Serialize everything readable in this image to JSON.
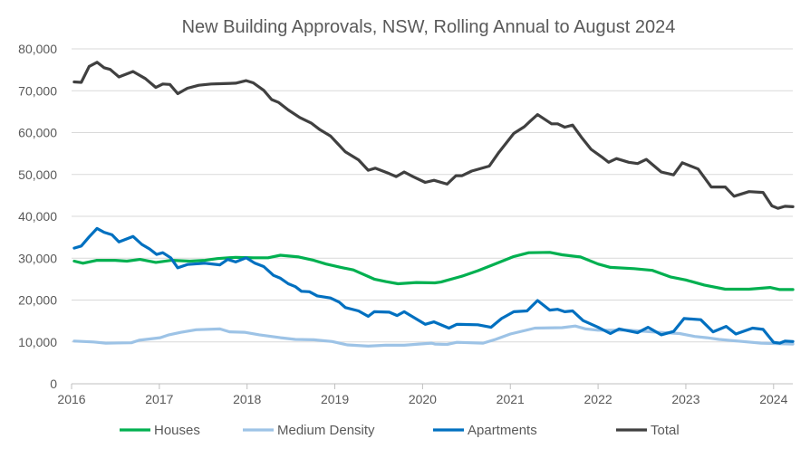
{
  "chart_data": {
    "type": "line",
    "title": "New Building Approvals, NSW, Rolling Annual to August 2024",
    "xlabel": "",
    "ylabel": "",
    "xlim": [
      2016,
      2024.22
    ],
    "ylim": [
      0,
      80000
    ],
    "x_ticks": [
      "2016",
      "2017",
      "2018",
      "2019",
      "2020",
      "2021",
      "2022",
      "2023",
      "2024"
    ],
    "y_ticks": [
      "0",
      "10,000",
      "20,000",
      "30,000",
      "40,000",
      "50,000",
      "60,000",
      "70,000",
      "80,000"
    ],
    "grid": "horizontal",
    "legend_position": "bottom",
    "series": [
      {
        "name": "Houses",
        "color": "#00B050",
        "points": [
          [
            2016.03,
            29300
          ],
          [
            2016.13,
            28800
          ],
          [
            2016.29,
            29500
          ],
          [
            2016.49,
            29500
          ],
          [
            2016.63,
            29300
          ],
          [
            2016.78,
            29700
          ],
          [
            2016.96,
            29000
          ],
          [
            2017.14,
            29500
          ],
          [
            2017.35,
            29300
          ],
          [
            2017.52,
            29500
          ],
          [
            2017.66,
            29900
          ],
          [
            2017.87,
            30200
          ],
          [
            2018.07,
            30100
          ],
          [
            2018.24,
            30100
          ],
          [
            2018.38,
            30700
          ],
          [
            2018.59,
            30300
          ],
          [
            2018.76,
            29500
          ],
          [
            2018.9,
            28600
          ],
          [
            2019.07,
            27800
          ],
          [
            2019.21,
            27200
          ],
          [
            2019.45,
            25000
          ],
          [
            2019.58,
            24400
          ],
          [
            2019.72,
            23900
          ],
          [
            2019.93,
            24200
          ],
          [
            2020.14,
            24100
          ],
          [
            2020.21,
            24300
          ],
          [
            2020.45,
            25700
          ],
          [
            2020.63,
            27000
          ],
          [
            2020.8,
            28400
          ],
          [
            2021.04,
            30400
          ],
          [
            2021.21,
            31300
          ],
          [
            2021.45,
            31400
          ],
          [
            2021.59,
            30800
          ],
          [
            2021.8,
            30300
          ],
          [
            2022.0,
            28600
          ],
          [
            2022.14,
            27800
          ],
          [
            2022.41,
            27500
          ],
          [
            2022.62,
            27100
          ],
          [
            2022.83,
            25500
          ],
          [
            2023.0,
            24800
          ],
          [
            2023.21,
            23600
          ],
          [
            2023.45,
            22600
          ],
          [
            2023.72,
            22600
          ],
          [
            2023.96,
            23000
          ],
          [
            2024.07,
            22500
          ],
          [
            2024.22,
            22500
          ]
        ]
      },
      {
        "name": "Medium Density",
        "color": "#9DC3E6",
        "points": [
          [
            2016.03,
            10200
          ],
          [
            2016.25,
            10000
          ],
          [
            2016.39,
            9700
          ],
          [
            2016.68,
            9800
          ],
          [
            2016.77,
            10400
          ],
          [
            2017.01,
            11000
          ],
          [
            2017.11,
            11700
          ],
          [
            2017.25,
            12300
          ],
          [
            2017.42,
            12900
          ],
          [
            2017.69,
            13100
          ],
          [
            2017.8,
            12400
          ],
          [
            2017.97,
            12300
          ],
          [
            2018.14,
            11700
          ],
          [
            2018.38,
            11000
          ],
          [
            2018.55,
            10600
          ],
          [
            2018.76,
            10500
          ],
          [
            2018.97,
            10100
          ],
          [
            2019.14,
            9300
          ],
          [
            2019.38,
            9000
          ],
          [
            2019.58,
            9200
          ],
          [
            2019.79,
            9200
          ],
          [
            2020.1,
            9700
          ],
          [
            2020.14,
            9500
          ],
          [
            2020.28,
            9400
          ],
          [
            2020.39,
            9900
          ],
          [
            2020.69,
            9700
          ],
          [
            2020.83,
            10600
          ],
          [
            2021.0,
            11900
          ],
          [
            2021.28,
            13300
          ],
          [
            2021.59,
            13400
          ],
          [
            2021.74,
            13800
          ],
          [
            2021.86,
            13100
          ],
          [
            2022.0,
            12800
          ],
          [
            2022.35,
            12800
          ],
          [
            2022.69,
            12300
          ],
          [
            2022.93,
            12000
          ],
          [
            2023.1,
            11300
          ],
          [
            2023.24,
            11000
          ],
          [
            2023.38,
            10600
          ],
          [
            2023.65,
            10100
          ],
          [
            2023.86,
            9700
          ],
          [
            2024.22,
            9500
          ]
        ]
      },
      {
        "name": "Apartments",
        "color": "#0070C0",
        "points": [
          [
            2016.03,
            32400
          ],
          [
            2016.11,
            32900
          ],
          [
            2016.2,
            35100
          ],
          [
            2016.29,
            37100
          ],
          [
            2016.37,
            36200
          ],
          [
            2016.46,
            35600
          ],
          [
            2016.54,
            33900
          ],
          [
            2016.7,
            35200
          ],
          [
            2016.8,
            33300
          ],
          [
            2016.89,
            32200
          ],
          [
            2016.97,
            30900
          ],
          [
            2017.04,
            31300
          ],
          [
            2017.13,
            30100
          ],
          [
            2017.21,
            27700
          ],
          [
            2017.32,
            28500
          ],
          [
            2017.52,
            28800
          ],
          [
            2017.69,
            28400
          ],
          [
            2017.78,
            29700
          ],
          [
            2017.87,
            29100
          ],
          [
            2017.99,
            30100
          ],
          [
            2018.09,
            28800
          ],
          [
            2018.19,
            28000
          ],
          [
            2018.3,
            25900
          ],
          [
            2018.38,
            25200
          ],
          [
            2018.47,
            23900
          ],
          [
            2018.55,
            23200
          ],
          [
            2018.62,
            22100
          ],
          [
            2018.71,
            22000
          ],
          [
            2018.8,
            21000
          ],
          [
            2018.95,
            20500
          ],
          [
            2019.05,
            19500
          ],
          [
            2019.12,
            18200
          ],
          [
            2019.27,
            17400
          ],
          [
            2019.38,
            16100
          ],
          [
            2019.45,
            17200
          ],
          [
            2019.62,
            17100
          ],
          [
            2019.71,
            16300
          ],
          [
            2019.79,
            17200
          ],
          [
            2020.03,
            14200
          ],
          [
            2020.13,
            14800
          ],
          [
            2020.3,
            13300
          ],
          [
            2020.39,
            14200
          ],
          [
            2020.63,
            14100
          ],
          [
            2020.78,
            13500
          ],
          [
            2020.9,
            15600
          ],
          [
            2021.04,
            17200
          ],
          [
            2021.19,
            17400
          ],
          [
            2021.31,
            19900
          ],
          [
            2021.45,
            17600
          ],
          [
            2021.54,
            17800
          ],
          [
            2021.62,
            17200
          ],
          [
            2021.71,
            17400
          ],
          [
            2021.83,
            15100
          ],
          [
            2022.0,
            13500
          ],
          [
            2022.14,
            12000
          ],
          [
            2022.24,
            13100
          ],
          [
            2022.45,
            12200
          ],
          [
            2022.57,
            13500
          ],
          [
            2022.72,
            11700
          ],
          [
            2022.86,
            12500
          ],
          [
            2022.98,
            15600
          ],
          [
            2023.17,
            15300
          ],
          [
            2023.31,
            12400
          ],
          [
            2023.46,
            13700
          ],
          [
            2023.57,
            11900
          ],
          [
            2023.76,
            13300
          ],
          [
            2023.88,
            13000
          ],
          [
            2024.0,
            9900
          ],
          [
            2024.07,
            9700
          ],
          [
            2024.13,
            10200
          ],
          [
            2024.22,
            10100
          ]
        ]
      },
      {
        "name": "Total",
        "color": "#404040",
        "points": [
          [
            2016.03,
            72100
          ],
          [
            2016.11,
            72000
          ],
          [
            2016.2,
            75800
          ],
          [
            2016.29,
            76800
          ],
          [
            2016.37,
            75500
          ],
          [
            2016.44,
            75100
          ],
          [
            2016.54,
            73300
          ],
          [
            2016.7,
            74600
          ],
          [
            2016.84,
            72900
          ],
          [
            2016.96,
            70800
          ],
          [
            2017.04,
            71600
          ],
          [
            2017.12,
            71500
          ],
          [
            2017.21,
            69300
          ],
          [
            2017.32,
            70600
          ],
          [
            2017.45,
            71300
          ],
          [
            2017.59,
            71600
          ],
          [
            2017.73,
            71700
          ],
          [
            2017.87,
            71800
          ],
          [
            2017.99,
            72400
          ],
          [
            2018.07,
            71900
          ],
          [
            2018.19,
            70100
          ],
          [
            2018.28,
            67900
          ],
          [
            2018.36,
            67200
          ],
          [
            2018.47,
            65400
          ],
          [
            2018.6,
            63600
          ],
          [
            2018.73,
            62300
          ],
          [
            2018.83,
            60700
          ],
          [
            2018.95,
            59200
          ],
          [
            2019.03,
            57400
          ],
          [
            2019.12,
            55400
          ],
          [
            2019.27,
            53500
          ],
          [
            2019.38,
            51000
          ],
          [
            2019.46,
            51500
          ],
          [
            2019.62,
            50200
          ],
          [
            2019.7,
            49500
          ],
          [
            2019.79,
            50600
          ],
          [
            2019.89,
            49500
          ],
          [
            2020.03,
            48100
          ],
          [
            2020.13,
            48600
          ],
          [
            2020.28,
            47700
          ],
          [
            2020.38,
            49700
          ],
          [
            2020.45,
            49700
          ],
          [
            2020.56,
            50800
          ],
          [
            2020.76,
            52000
          ],
          [
            2020.87,
            55300
          ],
          [
            2021.04,
            59800
          ],
          [
            2021.16,
            61400
          ],
          [
            2021.23,
            62800
          ],
          [
            2021.31,
            64300
          ],
          [
            2021.47,
            62100
          ],
          [
            2021.54,
            62100
          ],
          [
            2021.62,
            61300
          ],
          [
            2021.71,
            61800
          ],
          [
            2021.81,
            58900
          ],
          [
            2021.92,
            56000
          ],
          [
            2022.04,
            54200
          ],
          [
            2022.12,
            52900
          ],
          [
            2022.21,
            53800
          ],
          [
            2022.35,
            52900
          ],
          [
            2022.45,
            52600
          ],
          [
            2022.55,
            53600
          ],
          [
            2022.72,
            50600
          ],
          [
            2022.86,
            49900
          ],
          [
            2022.96,
            52800
          ],
          [
            2023.14,
            51300
          ],
          [
            2023.29,
            47000
          ],
          [
            2023.45,
            47000
          ],
          [
            2023.55,
            44800
          ],
          [
            2023.72,
            45900
          ],
          [
            2023.88,
            45700
          ],
          [
            2023.98,
            42500
          ],
          [
            2024.05,
            41900
          ],
          [
            2024.13,
            42400
          ],
          [
            2024.22,
            42300
          ]
        ]
      }
    ]
  }
}
